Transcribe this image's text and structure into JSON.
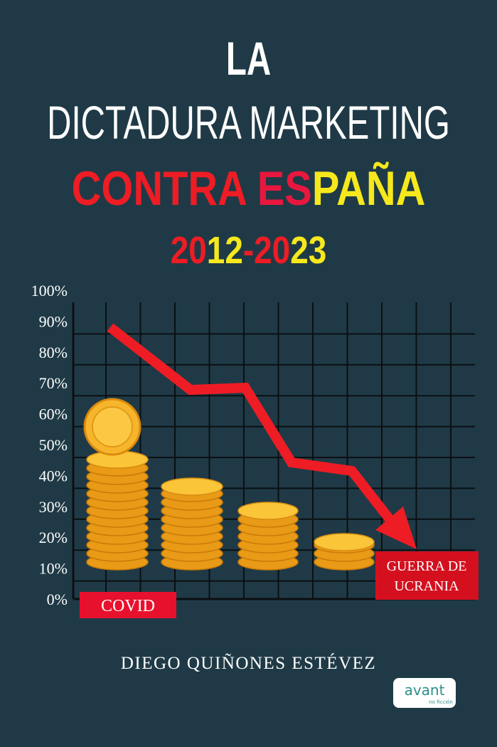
{
  "title": {
    "line1": "LA",
    "line2": "DICTADURA MARKETING",
    "line3": {
      "part1": "CONTRA ",
      "part2": "ES",
      "part3": "PAÑA"
    },
    "years": {
      "part1": "20",
      "part2": "12",
      "part3": "-20",
      "part4": "23"
    }
  },
  "graphic": {
    "axis_labels": [
      "100%",
      "90%",
      "80%",
      "70%",
      "60%",
      "50%",
      "40%",
      "30%",
      "20%",
      "10%",
      "0%"
    ],
    "label_left": "COVID",
    "label_right_line1": "GUERRA DE",
    "label_right_line2": "UCRANIA"
  },
  "author": "DIEGO QUIÑONES ESTÉVEZ",
  "publisher": {
    "name": "avant",
    "collection": "no ficción"
  }
}
